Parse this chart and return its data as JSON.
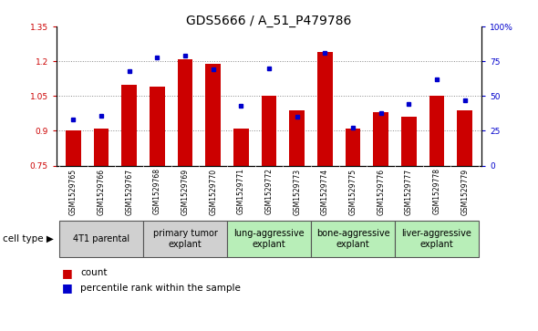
{
  "title": "GDS5666 / A_51_P479786",
  "samples": [
    "GSM1529765",
    "GSM1529766",
    "GSM1529767",
    "GSM1529768",
    "GSM1529769",
    "GSM1529770",
    "GSM1529771",
    "GSM1529772",
    "GSM1529773",
    "GSM1529774",
    "GSM1529775",
    "GSM1529776",
    "GSM1529777",
    "GSM1529778",
    "GSM1529779"
  ],
  "count_values": [
    0.9,
    0.91,
    1.1,
    1.09,
    1.21,
    1.19,
    0.91,
    1.05,
    0.99,
    1.24,
    0.91,
    0.98,
    0.96,
    1.05,
    0.99
  ],
  "percentile_values": [
    33,
    36,
    68,
    78,
    79,
    69,
    43,
    70,
    35,
    81,
    27,
    38,
    44,
    62,
    47
  ],
  "ylim_left": [
    0.75,
    1.35
  ],
  "ylim_right": [
    0,
    100
  ],
  "yticks_left": [
    0.75,
    0.9,
    1.05,
    1.2,
    1.35
  ],
  "yticks_right": [
    0,
    25,
    50,
    75,
    100
  ],
  "ytick_labels_left": [
    "0.75",
    "0.9",
    "1.05",
    "1.2",
    "1.35"
  ],
  "ytick_labels_right": [
    "0",
    "25",
    "50",
    "75",
    "100%"
  ],
  "bar_color": "#cc0000",
  "dot_color": "#0000cc",
  "bar_bottom": 0.75,
  "groups": [
    {
      "label": "4T1 parental",
      "indices": [
        0,
        1,
        2
      ]
    },
    {
      "label": "primary tumor\nexplant",
      "indices": [
        3,
        4,
        5
      ]
    },
    {
      "label": "lung-aggressive\nexplant",
      "indices": [
        6,
        7,
        8
      ]
    },
    {
      "label": "bone-aggressive\nexplant",
      "indices": [
        9,
        10,
        11
      ]
    },
    {
      "label": "liver-aggressive\nexplant",
      "indices": [
        12,
        13,
        14
      ]
    }
  ],
  "group_colors": [
    "#d0d0d0",
    "#d0d0d0",
    "#b8eeb8",
    "#b8eeb8",
    "#b8eeb8"
  ],
  "cell_type_label": "cell type",
  "legend_count_label": "count",
  "legend_pct_label": "percentile rank within the sample",
  "title_fontsize": 10,
  "tick_label_fontsize": 6.5,
  "sample_fontsize": 5.5,
  "group_label_fontsize": 7,
  "grid_color": "#888888",
  "gray_bg": "#c8c8c8",
  "sample_bg": "#d0d0d0"
}
